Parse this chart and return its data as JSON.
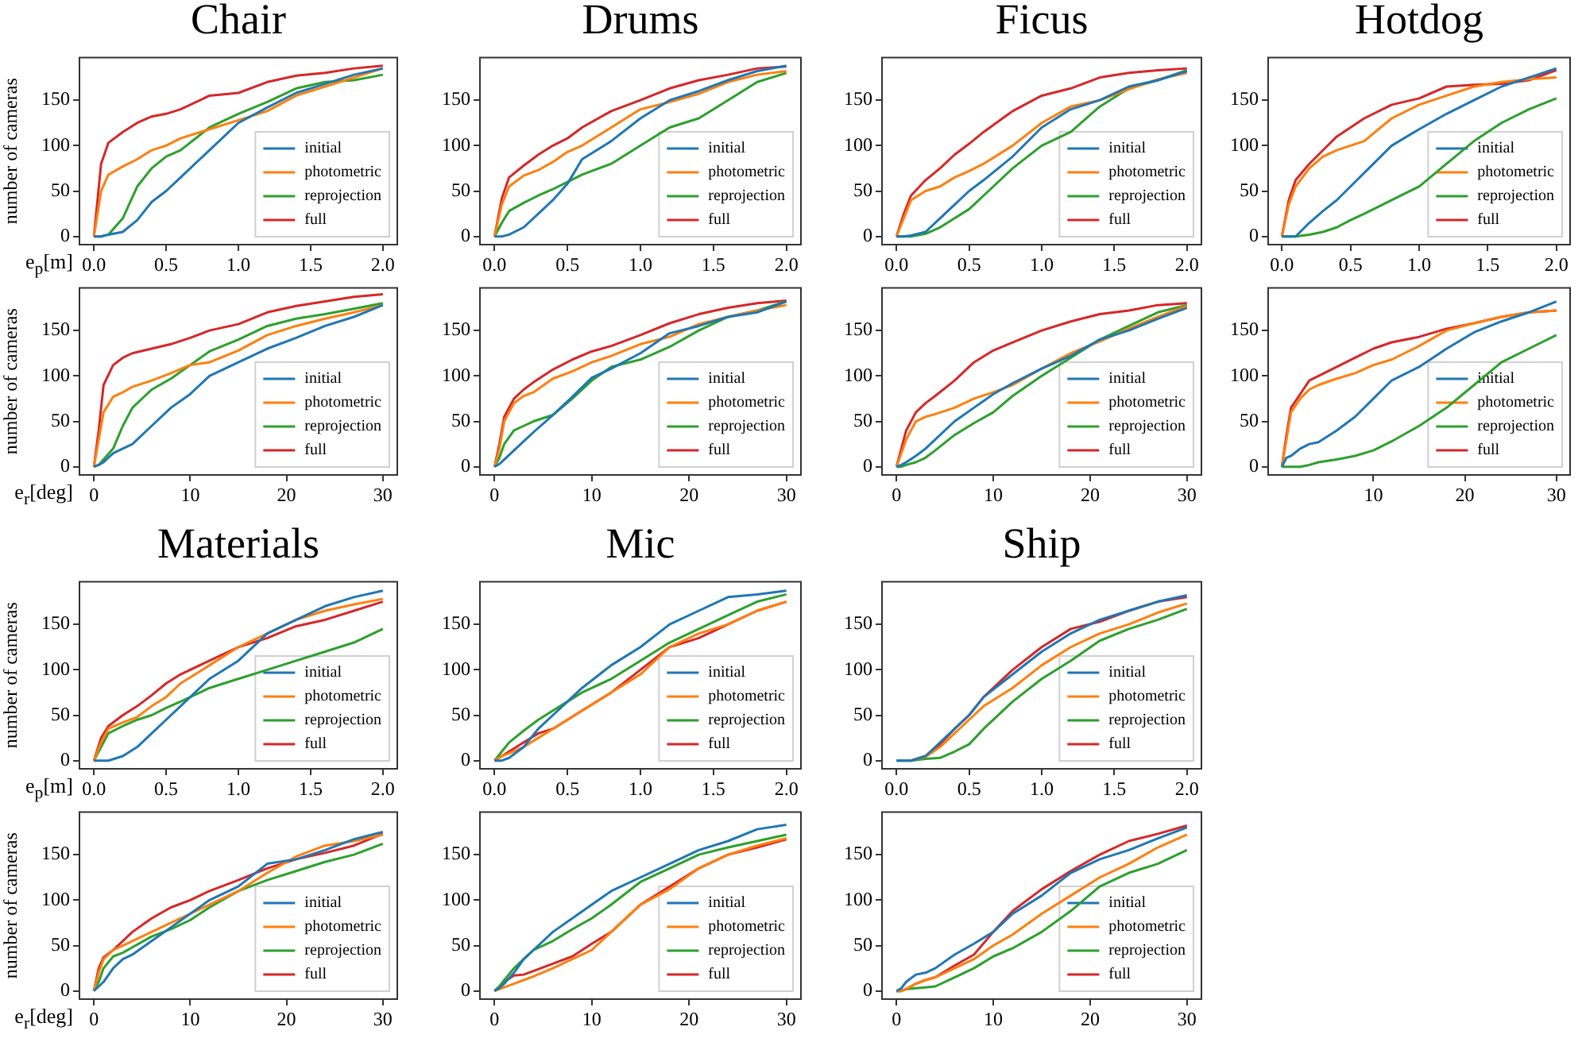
{
  "chart_data": [
    {
      "type": "line",
      "title": "Chair",
      "ylabel": "number of cameras",
      "xlabel": "e$_{p}$[m]",
      "x": [
        0,
        0.05,
        0.1,
        0.2,
        0.3,
        0.4,
        0.5,
        0.6,
        0.8,
        1.0,
        1.2,
        1.4,
        1.6,
        1.8,
        2.0
      ],
      "xlim": [
        -0.1,
        2.1
      ],
      "xticks": [
        {
          "value": 0,
          "label": "0.0"
        },
        0.5,
        {
          "value": 1,
          "label": "1.0"
        },
        1.5,
        {
          "value": 2,
          "label": "2.0"
        }
      ],
      "ylim": [
        -9,
        197
      ],
      "yticks": [
        0,
        50,
        100,
        150
      ],
      "legend": "bottom right",
      "marker": "none",
      "series": [
        {
          "name": "initial",
          "color": "#1f77b4",
          "values": [
            0,
            0,
            2,
            5,
            18,
            38,
            50,
            65,
            95,
            125,
            142,
            158,
            168,
            178,
            185
          ]
        },
        {
          "name": "photometric",
          "color": "#ff7f0e",
          "values": [
            0,
            50,
            68,
            77,
            85,
            95,
            100,
            108,
            118,
            128,
            138,
            155,
            165,
            175,
            185
          ]
        },
        {
          "name": "reprojection",
          "color": "#2ca02c",
          "values": [
            0,
            0,
            2,
            20,
            55,
            75,
            88,
            95,
            120,
            135,
            148,
            163,
            170,
            172,
            178
          ]
        },
        {
          "name": "full",
          "color": "#d62728",
          "values": [
            0,
            80,
            103,
            115,
            125,
            132,
            135,
            140,
            155,
            158,
            170,
            177,
            180,
            185,
            188
          ]
        }
      ]
    },
    {
      "type": "line",
      "title": "Drums",
      "x": [
        0,
        0.05,
        0.1,
        0.2,
        0.3,
        0.4,
        0.5,
        0.6,
        0.8,
        1.0,
        1.2,
        1.4,
        1.6,
        1.8,
        2.0
      ],
      "xlim": [
        -0.1,
        2.1
      ],
      "xticks": [
        {
          "value": 0,
          "label": "0.0"
        },
        0.5,
        {
          "value": 1,
          "label": "1.0"
        },
        1.5,
        {
          "value": 2,
          "label": "2.0"
        }
      ],
      "ylim": [
        -9,
        197
      ],
      "yticks": [
        0,
        50,
        100,
        150
      ],
      "legend": "bottom right",
      "marker": "none",
      "series": [
        {
          "name": "initial",
          "color": "#1f77b4",
          "values": [
            0,
            0,
            2,
            10,
            25,
            40,
            58,
            85,
            105,
            130,
            150,
            160,
            172,
            182,
            188
          ]
        },
        {
          "name": "photometric",
          "color": "#ff7f0e",
          "values": [
            0,
            35,
            55,
            67,
            73,
            82,
            93,
            100,
            120,
            140,
            148,
            157,
            170,
            178,
            182
          ]
        },
        {
          "name": "reprojection",
          "color": "#2ca02c",
          "values": [
            0,
            15,
            28,
            37,
            45,
            52,
            60,
            68,
            80,
            100,
            120,
            130,
            150,
            170,
            180
          ]
        },
        {
          "name": "full",
          "color": "#d62728",
          "values": [
            0,
            42,
            65,
            78,
            90,
            100,
            108,
            120,
            138,
            150,
            163,
            172,
            178,
            185,
            187
          ]
        }
      ]
    },
    {
      "type": "line",
      "title": "Ficus",
      "x": [
        0,
        0.05,
        0.1,
        0.2,
        0.3,
        0.4,
        0.5,
        0.6,
        0.8,
        1.0,
        1.2,
        1.4,
        1.6,
        1.8,
        2.0
      ],
      "xlim": [
        -0.1,
        2.1
      ],
      "xticks": [
        {
          "value": 0,
          "label": "0.0"
        },
        0.5,
        {
          "value": 1,
          "label": "1.0"
        },
        1.5,
        {
          "value": 2,
          "label": "2.0"
        }
      ],
      "ylim": [
        -9,
        197
      ],
      "yticks": [
        0,
        50,
        100,
        150
      ],
      "legend": "bottom right",
      "marker": "none",
      "series": [
        {
          "name": "initial",
          "color": "#1f77b4",
          "values": [
            0,
            0,
            1,
            5,
            20,
            35,
            50,
            62,
            88,
            120,
            140,
            150,
            165,
            172,
            182
          ]
        },
        {
          "name": "photometric",
          "color": "#ff7f0e",
          "values": [
            0,
            20,
            40,
            50,
            55,
            65,
            72,
            80,
            100,
            125,
            143,
            150,
            162,
            173,
            180
          ]
        },
        {
          "name": "reprojection",
          "color": "#2ca02c",
          "values": [
            0,
            0,
            0,
            3,
            10,
            20,
            30,
            45,
            75,
            100,
            115,
            143,
            163,
            172,
            183
          ]
        },
        {
          "name": "full",
          "color": "#d62728",
          "values": [
            0,
            25,
            45,
            62,
            75,
            90,
            102,
            115,
            138,
            155,
            163,
            175,
            180,
            183,
            185
          ]
        }
      ]
    },
    {
      "type": "line",
      "title": "Hotdog",
      "x": [
        0,
        0.05,
        0.1,
        0.2,
        0.3,
        0.4,
        0.5,
        0.6,
        0.8,
        1.0,
        1.2,
        1.4,
        1.6,
        1.8,
        2.0
      ],
      "xlim": [
        -0.1,
        2.1
      ],
      "xticks": [
        {
          "value": 0,
          "label": "0.0"
        },
        0.5,
        {
          "value": 1,
          "label": "1.0"
        },
        1.5,
        {
          "value": 2,
          "label": "2.0"
        }
      ],
      "ylim": [
        -9,
        197
      ],
      "yticks": [
        0,
        50,
        100,
        150
      ],
      "legend": "bottom right",
      "marker": "none",
      "series": [
        {
          "name": "initial",
          "color": "#1f77b4",
          "values": [
            0,
            0,
            0,
            15,
            28,
            40,
            55,
            70,
            100,
            118,
            135,
            150,
            165,
            175,
            185
          ]
        },
        {
          "name": "photometric",
          "color": "#ff7f0e",
          "values": [
            0,
            35,
            55,
            75,
            88,
            95,
            100,
            105,
            130,
            145,
            155,
            165,
            170,
            173,
            175
          ]
        },
        {
          "name": "reprojection",
          "color": "#2ca02c",
          "values": [
            0,
            0,
            0,
            2,
            5,
            10,
            18,
            25,
            40,
            55,
            80,
            105,
            125,
            140,
            152
          ]
        },
        {
          "name": "full",
          "color": "#d62728",
          "values": [
            0,
            40,
            62,
            80,
            95,
            110,
            120,
            130,
            145,
            152,
            165,
            167,
            168,
            172,
            183
          ]
        }
      ]
    },
    {
      "type": "line",
      "ylabel": "number of cameras",
      "xlabel": "e$_{r}$[deg]",
      "x": [
        0,
        0.5,
        1,
        2,
        3,
        4,
        6,
        8,
        10,
        12,
        15,
        18,
        21,
        24,
        27,
        30
      ],
      "xlim": [
        -1.5,
        31.5
      ],
      "xticks": [
        0,
        10,
        20,
        30
      ],
      "ylim": [
        -9,
        197
      ],
      "yticks": [
        0,
        50,
        100,
        150
      ],
      "legend": "bottom right",
      "marker": "none",
      "series": [
        {
          "name": "initial",
          "color": "#1f77b4",
          "values": [
            0,
            2,
            5,
            15,
            20,
            25,
            45,
            65,
            80,
            100,
            115,
            130,
            142,
            155,
            165,
            178
          ]
        },
        {
          "name": "photometric",
          "color": "#ff7f0e",
          "values": [
            0,
            30,
            60,
            77,
            82,
            88,
            95,
            103,
            112,
            115,
            128,
            145,
            155,
            163,
            170,
            178
          ]
        },
        {
          "name": "reprojection",
          "color": "#2ca02c",
          "values": [
            0,
            2,
            8,
            20,
            45,
            65,
            85,
            97,
            112,
            127,
            140,
            155,
            163,
            168,
            174,
            180
          ]
        },
        {
          "name": "full",
          "color": "#d62728",
          "values": [
            0,
            40,
            90,
            112,
            120,
            125,
            130,
            135,
            142,
            150,
            157,
            170,
            177,
            182,
            187,
            190
          ]
        }
      ]
    },
    {
      "type": "line",
      "x": [
        0,
        0.5,
        1,
        2,
        3,
        4,
        6,
        8,
        10,
        12,
        15,
        18,
        21,
        24,
        27,
        30
      ],
      "xlim": [
        -1.5,
        31.5
      ],
      "xticks": [
        0,
        10,
        20,
        30
      ],
      "ylim": [
        -9,
        197
      ],
      "yticks": [
        0,
        50,
        100,
        150
      ],
      "legend": "bottom right",
      "marker": "none",
      "series": [
        {
          "name": "initial",
          "color": "#1f77b4",
          "values": [
            0,
            3,
            8,
            18,
            28,
            38,
            57,
            77,
            98,
            108,
            125,
            147,
            155,
            165,
            170,
            182
          ]
        },
        {
          "name": "photometric",
          "color": "#ff7f0e",
          "values": [
            0,
            20,
            50,
            70,
            78,
            82,
            97,
            105,
            115,
            122,
            135,
            143,
            157,
            165,
            172,
            178
          ]
        },
        {
          "name": "reprojection",
          "color": "#2ca02c",
          "values": [
            0,
            10,
            25,
            40,
            45,
            50,
            57,
            75,
            95,
            110,
            118,
            132,
            150,
            165,
            172,
            182
          ]
        },
        {
          "name": "full",
          "color": "#d62728",
          "values": [
            0,
            25,
            55,
            75,
            85,
            93,
            107,
            118,
            127,
            133,
            145,
            158,
            168,
            175,
            180,
            183
          ]
        }
      ]
    },
    {
      "type": "line",
      "x": [
        0,
        0.5,
        1,
        2,
        3,
        4,
        6,
        8,
        10,
        12,
        15,
        18,
        21,
        24,
        27,
        30
      ],
      "xlim": [
        -1.5,
        31.5
      ],
      "xticks": [
        0,
        10,
        20,
        30
      ],
      "ylim": [
        -9,
        197
      ],
      "yticks": [
        0,
        50,
        100,
        150
      ],
      "legend": "bottom right",
      "marker": "none",
      "series": [
        {
          "name": "initial",
          "color": "#1f77b4",
          "values": [
            0,
            2,
            5,
            12,
            20,
            30,
            50,
            65,
            80,
            92,
            108,
            122,
            140,
            150,
            163,
            175
          ]
        },
        {
          "name": "photometric",
          "color": "#ff7f0e",
          "values": [
            0,
            15,
            30,
            50,
            55,
            58,
            65,
            75,
            82,
            90,
            108,
            125,
            138,
            152,
            165,
            177
          ]
        },
        {
          "name": "reprojection",
          "color": "#2ca02c",
          "values": [
            0,
            0,
            2,
            5,
            10,
            18,
            35,
            48,
            60,
            78,
            100,
            120,
            140,
            155,
            170,
            178
          ]
        },
        {
          "name": "full",
          "color": "#d62728",
          "values": [
            0,
            20,
            40,
            60,
            70,
            78,
            95,
            115,
            128,
            137,
            150,
            160,
            168,
            172,
            178,
            180
          ]
        }
      ]
    },
    {
      "type": "line",
      "x": [
        0,
        0.5,
        1,
        2,
        3,
        4,
        6,
        8,
        10,
        12,
        15,
        18,
        21,
        24,
        27,
        30
      ],
      "xlim": [
        -1.5,
        31.5
      ],
      "xticks": [
        10,
        20,
        30
      ],
      "ylim": [
        -9,
        197
      ],
      "yticks": [
        0,
        50,
        100,
        150
      ],
      "legend": "bottom right",
      "marker": "none",
      "series": [
        {
          "name": "initial",
          "color": "#1f77b4",
          "values": [
            0,
            10,
            12,
            20,
            25,
            27,
            40,
            55,
            75,
            95,
            110,
            130,
            148,
            160,
            170,
            182
          ]
        },
        {
          "name": "photometric",
          "color": "#ff7f0e",
          "values": [
            0,
            30,
            60,
            75,
            85,
            90,
            97,
            103,
            112,
            118,
            133,
            150,
            158,
            165,
            170,
            172
          ]
        },
        {
          "name": "reprojection",
          "color": "#2ca02c",
          "values": [
            0,
            0,
            0,
            0,
            2,
            5,
            8,
            12,
            18,
            28,
            45,
            65,
            90,
            115,
            130,
            145
          ]
        },
        {
          "name": "full",
          "color": "#d62728",
          "values": [
            0,
            35,
            65,
            80,
            95,
            100,
            110,
            120,
            130,
            137,
            143,
            152,
            158,
            165,
            170,
            172
          ]
        }
      ]
    },
    {
      "type": "line",
      "title": "Materials",
      "ylabel": "number of cameras",
      "xlabel": "e$_{p}$[m]",
      "x": [
        0,
        0.05,
        0.1,
        0.2,
        0.3,
        0.4,
        0.5,
        0.6,
        0.8,
        1.0,
        1.2,
        1.4,
        1.6,
        1.8,
        2.0
      ],
      "xlim": [
        -0.1,
        2.1
      ],
      "xticks": [
        {
          "value": 0,
          "label": "0.0"
        },
        0.5,
        {
          "value": 1,
          "label": "1.0"
        },
        1.5,
        {
          "value": 2,
          "label": "2.0"
        }
      ],
      "ylim": [
        -9,
        197
      ],
      "yticks": [
        0,
        50,
        100,
        150
      ],
      "legend": "bottom right",
      "marker": "none",
      "series": [
        {
          "name": "initial",
          "color": "#1f77b4",
          "values": [
            0,
            0,
            0,
            5,
            15,
            30,
            45,
            60,
            90,
            110,
            140,
            155,
            170,
            180,
            187
          ]
        },
        {
          "name": "photometric",
          "color": "#ff7f0e",
          "values": [
            0,
            20,
            35,
            42,
            48,
            60,
            70,
            85,
            105,
            125,
            140,
            155,
            165,
            172,
            178
          ]
        },
        {
          "name": "reprojection",
          "color": "#2ca02c",
          "values": [
            0,
            15,
            30,
            38,
            45,
            50,
            58,
            65,
            80,
            90,
            100,
            110,
            120,
            130,
            145
          ]
        },
        {
          "name": "full",
          "color": "#d62728",
          "values": [
            0,
            25,
            38,
            50,
            60,
            72,
            85,
            95,
            110,
            125,
            135,
            148,
            155,
            165,
            175
          ]
        }
      ]
    },
    {
      "type": "line",
      "title": "Mic",
      "x": [
        0,
        0.05,
        0.1,
        0.2,
        0.3,
        0.4,
        0.5,
        0.6,
        0.8,
        1.0,
        1.2,
        1.4,
        1.6,
        1.8,
        2.0
      ],
      "xlim": [
        -0.1,
        2.1
      ],
      "xticks": [
        {
          "value": 0,
          "label": "0.0"
        },
        0.5,
        {
          "value": 1,
          "label": "1.0"
        },
        1.5,
        {
          "value": 2,
          "label": "2.0"
        }
      ],
      "ylim": [
        -9,
        197
      ],
      "yticks": [
        0,
        50,
        100,
        150
      ],
      "legend": "bottom right",
      "marker": "none",
      "series": [
        {
          "name": "initial",
          "color": "#1f77b4",
          "values": [
            0,
            0,
            3,
            15,
            35,
            50,
            65,
            80,
            105,
            125,
            150,
            165,
            180,
            183,
            187
          ]
        },
        {
          "name": "photometric",
          "color": "#ff7f0e",
          "values": [
            0,
            5,
            8,
            15,
            25,
            35,
            45,
            55,
            75,
            95,
            125,
            140,
            150,
            165,
            175
          ]
        },
        {
          "name": "reprojection",
          "color": "#2ca02c",
          "values": [
            0,
            10,
            20,
            33,
            45,
            55,
            65,
            75,
            90,
            110,
            130,
            145,
            160,
            175,
            183
          ]
        },
        {
          "name": "full",
          "color": "#d62728",
          "values": [
            0,
            5,
            10,
            20,
            30,
            35,
            45,
            55,
            75,
            100,
            125,
            135,
            150,
            165,
            175
          ]
        }
      ]
    },
    {
      "type": "line",
      "title": "Ship",
      "x": [
        0,
        0.05,
        0.1,
        0.2,
        0.3,
        0.4,
        0.5,
        0.6,
        0.8,
        1.0,
        1.2,
        1.4,
        1.6,
        1.8,
        2.0
      ],
      "xlim": [
        -0.1,
        2.1
      ],
      "xticks": [
        {
          "value": 0,
          "label": "0.0"
        },
        0.5,
        {
          "value": 1,
          "label": "1.0"
        },
        1.5,
        {
          "value": 2,
          "label": "2.0"
        }
      ],
      "ylim": [
        -9,
        197
      ],
      "yticks": [
        0,
        50,
        100,
        150
      ],
      "legend": "bottom right",
      "marker": "none",
      "series": [
        {
          "name": "initial",
          "color": "#1f77b4",
          "values": [
            0,
            0,
            0,
            5,
            20,
            35,
            50,
            70,
            95,
            120,
            140,
            155,
            165,
            175,
            182
          ]
        },
        {
          "name": "photometric",
          "color": "#ff7f0e",
          "values": [
            null,
            null,
            0,
            4,
            15,
            30,
            45,
            60,
            80,
            105,
            125,
            140,
            150,
            163,
            173
          ]
        },
        {
          "name": "reprojection",
          "color": "#2ca02c",
          "values": [
            0,
            0,
            0,
            2,
            3,
            10,
            18,
            35,
            65,
            90,
            110,
            132,
            145,
            155,
            167
          ]
        },
        {
          "name": "full",
          "color": "#d62728",
          "values": [
            null,
            null,
            0,
            5,
            18,
            35,
            50,
            70,
            100,
            125,
            145,
            153,
            165,
            175,
            180
          ]
        }
      ]
    },
    {
      "type": "line",
      "ylabel": "number of cameras",
      "xlabel": "e$_{r}$[deg]",
      "x": [
        0,
        0.5,
        1,
        2,
        3,
        4,
        6,
        8,
        10,
        12,
        15,
        18,
        21,
        24,
        27,
        30
      ],
      "xlim": [
        -1.5,
        31.5
      ],
      "xticks": [
        0,
        10,
        20,
        30
      ],
      "ylim": [
        -9,
        197
      ],
      "yticks": [
        0,
        50,
        100,
        150
      ],
      "legend": "bottom right",
      "marker": "none",
      "series": [
        {
          "name": "initial",
          "color": "#1f77b4",
          "values": [
            0,
            5,
            10,
            25,
            35,
            40,
            55,
            70,
            85,
            100,
            115,
            140,
            145,
            155,
            167,
            175
          ]
        },
        {
          "name": "photometric",
          "color": "#ff7f0e",
          "values": [
            0,
            20,
            35,
            45,
            50,
            55,
            65,
            75,
            85,
            95,
            110,
            130,
            148,
            160,
            165,
            172
          ]
        },
        {
          "name": "reprojection",
          "color": "#2ca02c",
          "values": [
            0,
            10,
            25,
            38,
            42,
            48,
            60,
            68,
            78,
            92,
            110,
            122,
            132,
            142,
            150,
            162
          ]
        },
        {
          "name": "full",
          "color": "#d62728",
          "values": [
            0,
            25,
            37,
            45,
            55,
            65,
            80,
            92,
            100,
            110,
            122,
            135,
            145,
            152,
            160,
            173
          ]
        }
      ]
    },
    {
      "type": "line",
      "x": [
        0,
        0.5,
        1,
        2,
        3,
        4,
        6,
        8,
        10,
        12,
        15,
        18,
        21,
        24,
        27,
        30
      ],
      "xlim": [
        -1.5,
        31.5
      ],
      "xticks": [
        0,
        10,
        20,
        30
      ],
      "ylim": [
        -9,
        197
      ],
      "yticks": [
        0,
        50,
        100,
        150
      ],
      "legend": "bottom right",
      "marker": "none",
      "series": [
        {
          "name": "initial",
          "color": "#1f77b4",
          "values": [
            0,
            3,
            8,
            20,
            35,
            45,
            65,
            80,
            95,
            110,
            125,
            140,
            155,
            165,
            178,
            183
          ]
        },
        {
          "name": "photometric",
          "color": "#ff7f0e",
          "values": [
            0,
            2,
            4,
            8,
            12,
            16,
            25,
            35,
            45,
            65,
            95,
            112,
            135,
            150,
            160,
            168
          ]
        },
        {
          "name": "reprojection",
          "color": "#2ca02c",
          "values": [
            0,
            5,
            12,
            25,
            35,
            45,
            55,
            68,
            80,
            95,
            120,
            135,
            150,
            158,
            165,
            172
          ]
        },
        {
          "name": "full",
          "color": "#d62728",
          "values": [
            0,
            5,
            10,
            17,
            18,
            22,
            30,
            38,
            52,
            65,
            95,
            115,
            135,
            150,
            158,
            167
          ]
        }
      ]
    },
    {
      "type": "line",
      "x": [
        0,
        0.5,
        1,
        2,
        3,
        4,
        6,
        8,
        10,
        12,
        15,
        18,
        21,
        24,
        27,
        30
      ],
      "xlim": [
        -1.5,
        31.5
      ],
      "xticks": [
        0,
        10,
        20,
        30
      ],
      "ylim": [
        -9,
        197
      ],
      "yticks": [
        0,
        50,
        100,
        150
      ],
      "legend": "bottom right",
      "marker": "none",
      "series": [
        {
          "name": "initial",
          "color": "#1f77b4",
          "values": [
            0,
            3,
            10,
            18,
            20,
            25,
            40,
            52,
            65,
            85,
            105,
            130,
            145,
            155,
            168,
            180
          ]
        },
        {
          "name": "photometric",
          "color": "#ff7f0e",
          "values": [
            0,
            0,
            2,
            8,
            12,
            15,
            25,
            35,
            50,
            62,
            85,
            105,
            125,
            140,
            158,
            172
          ]
        },
        {
          "name": "reprojection",
          "color": "#2ca02c",
          "values": [
            0,
            0,
            2,
            3,
            4,
            5,
            15,
            25,
            38,
            47,
            65,
            88,
            115,
            130,
            140,
            155
          ]
        },
        {
          "name": "full",
          "color": "#d62728",
          "values": [
            0,
            0,
            2,
            8,
            12,
            15,
            28,
            40,
            65,
            88,
            112,
            132,
            150,
            165,
            173,
            182
          ]
        }
      ]
    }
  ]
}
